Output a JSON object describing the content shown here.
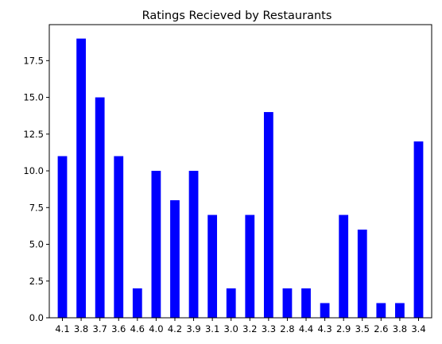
{
  "chart_data": {
    "type": "bar",
    "title": "Ratings Recieved by Restaurants",
    "xlabel": "",
    "ylabel": "",
    "categories": [
      "4.1",
      "3.8",
      "3.7",
      "3.6",
      "4.6",
      "4.0",
      "4.2",
      "3.9",
      "3.1",
      "3.0",
      "3.2",
      "3.3",
      "2.8",
      "4.4",
      "4.3",
      "2.9",
      "3.5",
      "2.6",
      "3.8",
      "3.4"
    ],
    "values": [
      11,
      19,
      15,
      11,
      2,
      10,
      8,
      10,
      7,
      2,
      7,
      14,
      2,
      2,
      1,
      7,
      6,
      1,
      1,
      12
    ],
    "ylim": [
      0,
      19.95
    ],
    "yticks": [
      0.0,
      2.5,
      5.0,
      7.5,
      10.0,
      12.5,
      15.0,
      17.5
    ],
    "ytick_labels": [
      "0.0",
      "2.5",
      "5.0",
      "7.5",
      "10.0",
      "12.5",
      "15.0",
      "17.5"
    ],
    "bar_color": "#0000ff",
    "grid": false,
    "legend": "none"
  }
}
